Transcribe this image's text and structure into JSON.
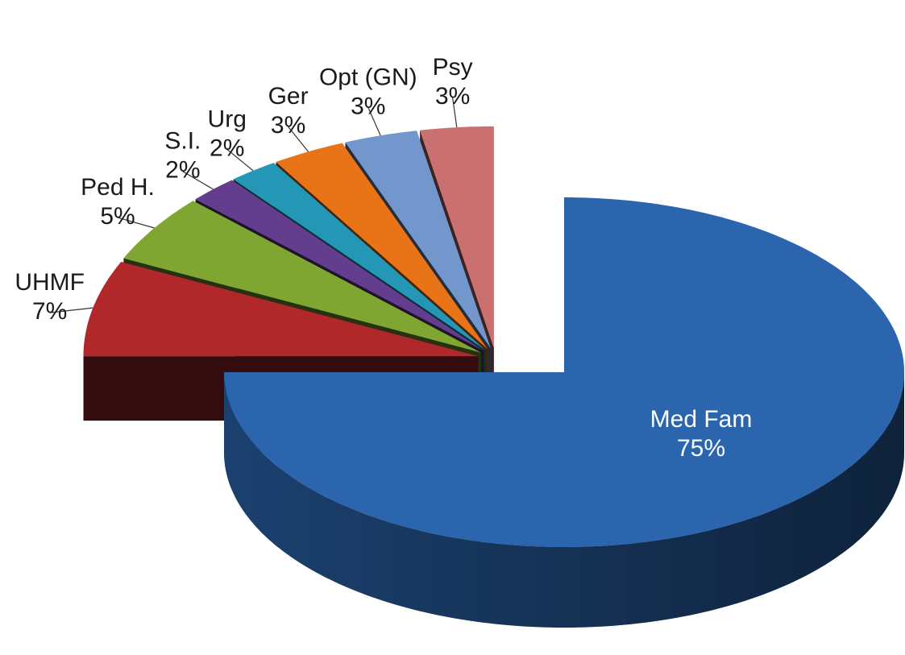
{
  "chart_data": {
    "type": "pie",
    "categories": [
      "Med Fam",
      "UHMF",
      "Ped H.",
      "S.I.",
      "Urg",
      "Ger",
      "Opt (GN)",
      "Psy"
    ],
    "values": [
      75,
      7,
      5,
      2,
      2,
      3,
      3,
      3
    ],
    "value_labels": [
      "75%",
      "7%",
      "5%",
      "2%",
      "2%",
      "3%",
      "3%",
      "3%"
    ],
    "colors": [
      "#2a65ae",
      "#b0282a",
      "#80a632",
      "#633e8e",
      "#2397b5",
      "#e97418",
      "#7397cc",
      "#cb7070"
    ]
  }
}
